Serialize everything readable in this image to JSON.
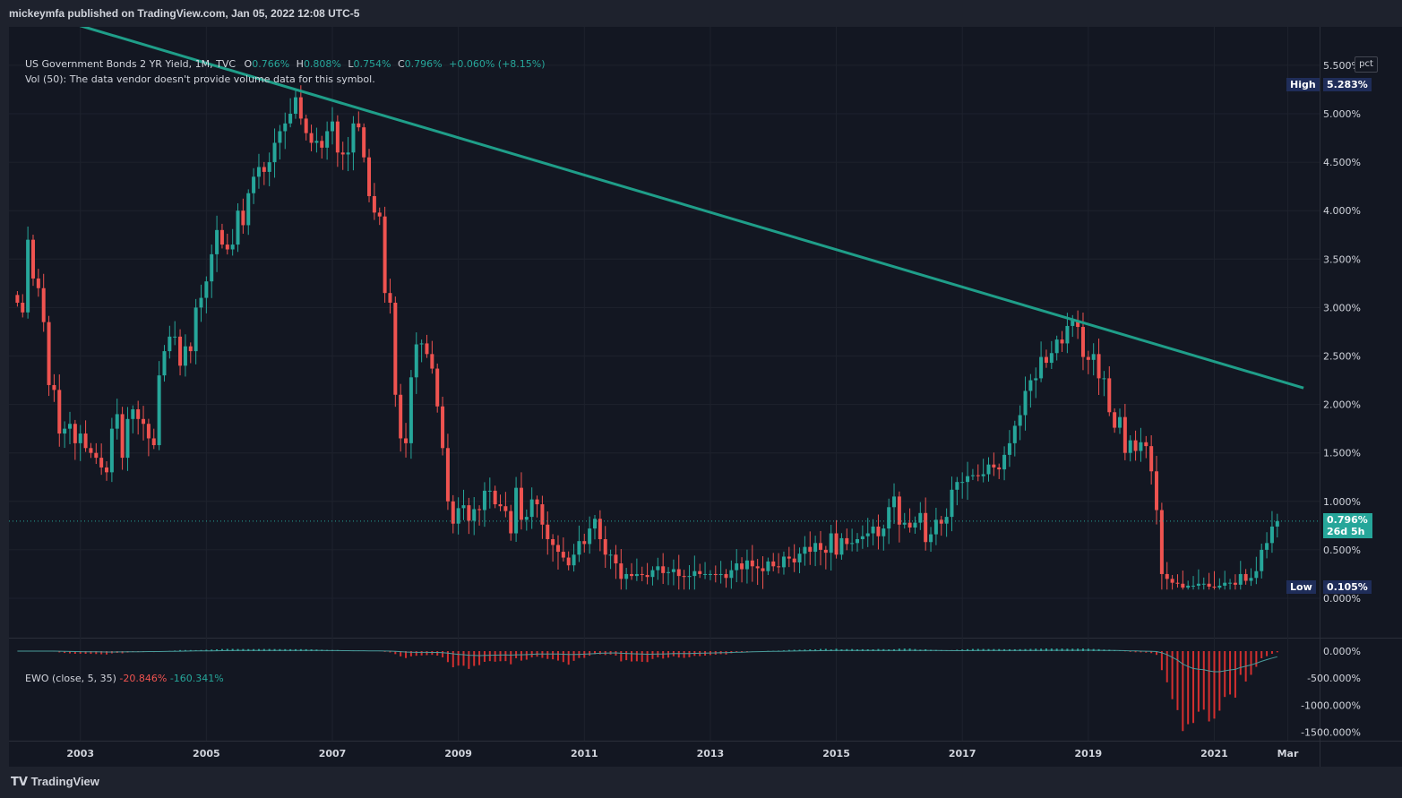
{
  "header": {
    "publisher_text": "mickeymfa published on TradingView.com, Jan 05, 2022 12:08 UTC-5"
  },
  "legend": {
    "title": "US Government Bonds 2 YR Yield, 1M, TVC",
    "o_label": "O",
    "o_value": "0.766%",
    "h_label": "H",
    "h_value": "0.808%",
    "l_label": "L",
    "l_value": "0.754%",
    "c_label": "C",
    "c_value": "0.796%",
    "change": "+0.060% (+8.15%)",
    "vol_text": "Vol (50): The data vendor doesn't provide volume data for this symbol."
  },
  "ewo_legend": {
    "label": "EWO (close, 5, 35)",
    "value1": "-20.846%",
    "value2": "-160.341%"
  },
  "pct_button": "pct",
  "tags": {
    "high_label": "High",
    "high_value": "5.283%",
    "low_label": "Low",
    "low_value": "0.105%",
    "last_value": "0.796%",
    "countdown": "26d 5h"
  },
  "footer": {
    "logo_text": "TradingView"
  },
  "colors": {
    "background": "#131722",
    "up": "#26a69a",
    "down": "#ef5350",
    "trendline": "#1f9e89",
    "ewo_pos": "#26a69a",
    "ewo_neg": "#d32f2f",
    "tag_dark": "#1f2d59",
    "last_tag": "#26a69a"
  },
  "chart_data": {
    "type": "candlestick",
    "symbol": "US Government Bonds 2 YR Yield",
    "interval": "1M",
    "unit": "%",
    "y_ticks": [
      "5.500%",
      "5.000%",
      "4.500%",
      "4.000%",
      "3.500%",
      "3.000%",
      "2.500%",
      "2.000%",
      "1.500%",
      "1.000%",
      "0.500%",
      "0.000%"
    ],
    "x_ticks": [
      "2003",
      "2005",
      "2007",
      "2009",
      "2011",
      "2013",
      "2015",
      "2017",
      "2019",
      "2021",
      "Mar"
    ],
    "ylim": [
      -0.1,
      5.9
    ],
    "high": 5.283,
    "low": 0.105,
    "last": 0.796,
    "monthly_close": [
      {
        "year": 2002,
        "closes": [
          3.05,
          2.95,
          3.7,
          3.3,
          3.2,
          2.85,
          2.2,
          2.15,
          1.7,
          1.75,
          1.8,
          1.6
        ]
      },
      {
        "year": 2003,
        "closes": [
          1.7,
          1.55,
          1.5,
          1.45,
          1.35,
          1.3,
          1.75,
          1.9,
          1.45,
          1.85,
          1.95,
          1.85
        ]
      },
      {
        "year": 2004,
        "closes": [
          1.8,
          1.65,
          1.58,
          2.3,
          2.55,
          2.7,
          2.7,
          2.4,
          2.6,
          2.55,
          3.0,
          3.1
        ]
      },
      {
        "year": 2005,
        "closes": [
          3.27,
          3.55,
          3.8,
          3.65,
          3.6,
          3.65,
          4.0,
          3.85,
          4.18,
          4.35,
          4.45,
          4.4
        ]
      },
      {
        "year": 2006,
        "closes": [
          4.5,
          4.7,
          4.82,
          4.9,
          5.0,
          5.17,
          4.95,
          4.8,
          4.7,
          4.72,
          4.65,
          4.82
        ]
      },
      {
        "year": 2007,
        "closes": [
          4.92,
          4.6,
          4.58,
          4.6,
          4.9,
          4.86,
          4.55,
          4.15,
          3.98,
          3.94,
          3.15,
          3.05
        ]
      },
      {
        "year": 2008,
        "closes": [
          2.1,
          1.65,
          1.6,
          2.28,
          2.62,
          2.63,
          2.52,
          2.37,
          1.98,
          1.55,
          1.0,
          0.77
        ]
      },
      {
        "year": 2009,
        "closes": [
          0.93,
          0.96,
          0.8,
          0.92,
          0.91,
          1.11,
          1.11,
          0.97,
          0.95,
          0.9,
          0.67,
          1.14
        ]
      },
      {
        "year": 2010,
        "closes": [
          0.81,
          0.84,
          1.02,
          0.97,
          0.76,
          0.61,
          0.55,
          0.48,
          0.42,
          0.34,
          0.45,
          0.59
        ]
      },
      {
        "year": 2011,
        "closes": [
          0.56,
          0.72,
          0.82,
          0.61,
          0.45,
          0.45,
          0.36,
          0.2,
          0.25,
          0.23,
          0.25,
          0.24
        ]
      },
      {
        "year": 2012,
        "closes": [
          0.22,
          0.29,
          0.33,
          0.26,
          0.27,
          0.3,
          0.23,
          0.22,
          0.23,
          0.28,
          0.25,
          0.25
        ]
      },
      {
        "year": 2013,
        "closes": [
          0.25,
          0.24,
          0.25,
          0.21,
          0.29,
          0.36,
          0.3,
          0.39,
          0.33,
          0.31,
          0.28,
          0.38
        ]
      },
      {
        "year": 2014,
        "closes": [
          0.33,
          0.32,
          0.43,
          0.41,
          0.37,
          0.46,
          0.53,
          0.48,
          0.57,
          0.5,
          0.47,
          0.67
        ]
      },
      {
        "year": 2015,
        "closes": [
          0.45,
          0.62,
          0.56,
          0.57,
          0.61,
          0.64,
          0.67,
          0.74,
          0.64,
          0.72,
          0.94,
          1.05
        ]
      },
      {
        "year": 2016,
        "closes": [
          0.76,
          0.78,
          0.73,
          0.78,
          0.88,
          0.58,
          0.66,
          0.81,
          0.77,
          0.84,
          1.12,
          1.2
        ]
      },
      {
        "year": 2017,
        "closes": [
          1.2,
          1.26,
          1.27,
          1.26,
          1.28,
          1.38,
          1.35,
          1.33,
          1.48,
          1.6,
          1.78,
          1.89
        ]
      },
      {
        "year": 2018,
        "closes": [
          2.14,
          2.25,
          2.27,
          2.49,
          2.43,
          2.53,
          2.67,
          2.63,
          2.81,
          2.87,
          2.8,
          2.49
        ]
      },
      {
        "year": 2019,
        "closes": [
          2.46,
          2.52,
          2.27,
          2.27,
          1.92,
          1.76,
          1.87,
          1.5,
          1.63,
          1.52,
          1.61,
          1.57
        ]
      },
      {
        "year": 2020,
        "closes": [
          1.31,
          0.91,
          0.25,
          0.2,
          0.16,
          0.15,
          0.11,
          0.13,
          0.13,
          0.15,
          0.15,
          0.12
        ]
      },
      {
        "year": 2021,
        "closes": [
          0.11,
          0.13,
          0.16,
          0.16,
          0.14,
          0.25,
          0.18,
          0.21,
          0.28,
          0.5,
          0.57,
          0.74
        ]
      },
      {
        "year": 2022,
        "closes": [
          0.796
        ]
      }
    ],
    "trendline": [
      {
        "date": "2002-01",
        "value": 6.1
      },
      {
        "date": "2022-06",
        "value": 2.17
      }
    ],
    "ewo": {
      "label": "EWO (close, 5, 35)",
      "y_ticks": [
        "0.000%",
        "-500.000%",
        "-1000.000%",
        "-1500.000%"
      ],
      "ylim": [
        -1550,
        60
      ],
      "min_value": -1480,
      "last_value": -160.341
    }
  }
}
